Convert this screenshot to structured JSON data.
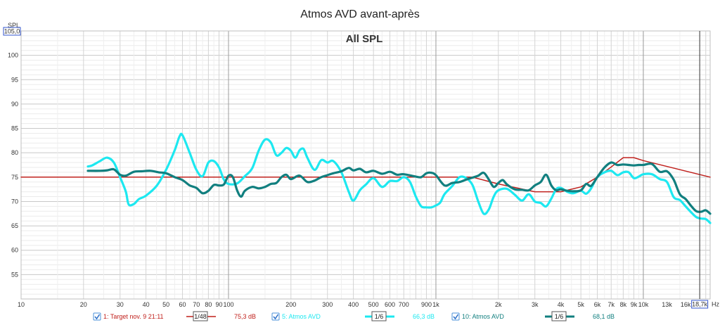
{
  "chart_data": {
    "type": "line",
    "title": "Atmos AVD avant-après",
    "overlay_label": "All SPL",
    "ylabel": "SPL",
    "xunit": "Hz",
    "x_scale": "log",
    "xlim": [
      10,
      21000
    ],
    "ylim": [
      50,
      105
    ],
    "ylim_top_label": "105,0",
    "cursor_label": "18,7k",
    "grid": true,
    "x_tick_labels": [
      {
        "x": 10,
        "label": "10"
      },
      {
        "x": 20,
        "label": "20"
      },
      {
        "x": 30,
        "label": "30"
      },
      {
        "x": 40,
        "label": "40"
      },
      {
        "x": 50,
        "label": "50"
      },
      {
        "x": 60,
        "label": "60"
      },
      {
        "x": 70,
        "label": "70"
      },
      {
        "x": 80,
        "label": "80"
      },
      {
        "x": 90,
        "label": "90"
      },
      {
        "x": 100,
        "label": "100"
      },
      {
        "x": 200,
        "label": "200"
      },
      {
        "x": 300,
        "label": "300"
      },
      {
        "x": 400,
        "label": "400"
      },
      {
        "x": 500,
        "label": "500"
      },
      {
        "x": 600,
        "label": "600"
      },
      {
        "x": 700,
        "label": "700"
      },
      {
        "x": 900,
        "label": "900"
      },
      {
        "x": 1000,
        "label": "1k"
      },
      {
        "x": 2000,
        "label": "2k"
      },
      {
        "x": 3000,
        "label": "3k"
      },
      {
        "x": 4000,
        "label": "4k"
      },
      {
        "x": 5000,
        "label": "5k"
      },
      {
        "x": 6000,
        "label": "6k"
      },
      {
        "x": 7000,
        "label": "7k"
      },
      {
        "x": 8000,
        "label": "8k"
      },
      {
        "x": 9000,
        "label": "9k"
      },
      {
        "x": 10000,
        "label": "10k"
      },
      {
        "x": 13000,
        "label": "13k"
      },
      {
        "x": 16000,
        "label": "16k"
      }
    ],
    "y_tick_labels": [
      {
        "y": 100,
        "label": "100"
      },
      {
        "y": 95,
        "label": "95"
      },
      {
        "y": 90,
        "label": "90"
      },
      {
        "y": 85,
        "label": "85"
      },
      {
        "y": 80,
        "label": "80"
      },
      {
        "y": 75,
        "label": "75"
      },
      {
        "y": 70,
        "label": "70"
      },
      {
        "y": 65,
        "label": "65"
      },
      {
        "y": 60,
        "label": "60"
      },
      {
        "y": 55,
        "label": "55"
      }
    ],
    "series": [
      {
        "name": "1: Target nov. 9 21:11",
        "color": "#c0201c",
        "smoothing": "1/48",
        "level": "75,3 dB",
        "points": [
          [
            10,
            75
          ],
          [
            1200,
            75
          ],
          [
            1500,
            75
          ],
          [
            2000,
            73.6
          ],
          [
            3000,
            72
          ],
          [
            4000,
            72
          ],
          [
            5000,
            73
          ],
          [
            6000,
            75
          ],
          [
            7000,
            77.1
          ],
          [
            8000,
            79
          ],
          [
            9000,
            79
          ],
          [
            10000,
            78.4
          ],
          [
            21000,
            75
          ]
        ]
      },
      {
        "name": "5: Atmos AVD",
        "color": "#1de8f0",
        "smoothing": "1/6",
        "level": "66,3 dB",
        "points": [
          [
            21,
            77.2
          ],
          [
            22,
            77.4
          ],
          [
            24,
            78.3
          ],
          [
            26,
            79
          ],
          [
            28,
            78
          ],
          [
            30,
            75
          ],
          [
            32,
            72
          ],
          [
            33,
            69.4
          ],
          [
            35,
            69.5
          ],
          [
            37,
            70.5
          ],
          [
            40,
            71.2
          ],
          [
            45,
            73.2
          ],
          [
            50,
            76.5
          ],
          [
            55,
            80.5
          ],
          [
            58,
            83.3
          ],
          [
            60,
            83.6
          ],
          [
            65,
            80
          ],
          [
            70,
            76.5
          ],
          [
            75,
            75.2
          ],
          [
            80,
            78
          ],
          [
            85,
            78.3
          ],
          [
            90,
            77
          ],
          [
            95,
            74.5
          ],
          [
            100,
            73.6
          ],
          [
            110,
            73.7
          ],
          [
            120,
            75.2
          ],
          [
            130,
            76.8
          ],
          [
            140,
            80.5
          ],
          [
            150,
            82.7
          ],
          [
            160,
            82.1
          ],
          [
            170,
            79.5
          ],
          [
            180,
            80
          ],
          [
            190,
            81
          ],
          [
            200,
            80.4
          ],
          [
            210,
            79
          ],
          [
            220,
            80.5
          ],
          [
            230,
            80.8
          ],
          [
            240,
            79
          ],
          [
            260,
            76.5
          ],
          [
            280,
            78.5
          ],
          [
            300,
            78
          ],
          [
            320,
            78.3
          ],
          [
            350,
            76
          ],
          [
            380,
            72
          ],
          [
            400,
            70.2
          ],
          [
            430,
            72.3
          ],
          [
            460,
            73.5
          ],
          [
            500,
            74.8
          ],
          [
            550,
            73
          ],
          [
            600,
            74.2
          ],
          [
            650,
            74.2
          ],
          [
            700,
            75
          ],
          [
            750,
            74
          ],
          [
            800,
            71
          ],
          [
            850,
            69
          ],
          [
            900,
            68.8
          ],
          [
            950,
            68.8
          ],
          [
            1000,
            69.2
          ],
          [
            1050,
            69.8
          ],
          [
            1100,
            71.5
          ],
          [
            1200,
            73.2
          ],
          [
            1300,
            75
          ],
          [
            1400,
            74.8
          ],
          [
            1500,
            73.4
          ],
          [
            1600,
            70
          ],
          [
            1700,
            67.5
          ],
          [
            1800,
            68.4
          ],
          [
            1900,
            71
          ],
          [
            2000,
            72.3
          ],
          [
            2200,
            72.6
          ],
          [
            2400,
            71.4
          ],
          [
            2600,
            70.2
          ],
          [
            2800,
            71.5
          ],
          [
            3000,
            70
          ],
          [
            3200,
            69.7
          ],
          [
            3400,
            69
          ],
          [
            3600,
            70.6
          ],
          [
            3800,
            72.5
          ],
          [
            4000,
            72.8
          ],
          [
            4300,
            72
          ],
          [
            4600,
            71.7
          ],
          [
            5000,
            72.2
          ],
          [
            5300,
            71.6
          ],
          [
            5600,
            72.7
          ],
          [
            6000,
            75
          ],
          [
            6500,
            76
          ],
          [
            7000,
            76.3
          ],
          [
            7500,
            75.4
          ],
          [
            8000,
            76
          ],
          [
            8500,
            76
          ],
          [
            9000,
            74.8
          ],
          [
            9500,
            75.1
          ],
          [
            10000,
            75.6
          ],
          [
            11000,
            75.6
          ],
          [
            12000,
            74.6
          ],
          [
            13000,
            74
          ],
          [
            14000,
            70.9
          ],
          [
            15000,
            70.3
          ],
          [
            16000,
            69
          ],
          [
            17000,
            67.8
          ],
          [
            18000,
            66.8
          ],
          [
            19000,
            66.5
          ],
          [
            20000,
            66.4
          ],
          [
            21000,
            65.6
          ]
        ]
      },
      {
        "name": "10: Atmos AVD",
        "color": "#117f7f",
        "smoothing": "1/6",
        "level": "68,1 dB",
        "points": [
          [
            21,
            76.3
          ],
          [
            24,
            76.3
          ],
          [
            26,
            76.4
          ],
          [
            28,
            76.6
          ],
          [
            30,
            75.5
          ],
          [
            32,
            75.3
          ],
          [
            35,
            76.1
          ],
          [
            38,
            76.2
          ],
          [
            42,
            76.3
          ],
          [
            46,
            76
          ],
          [
            50,
            75.8
          ],
          [
            55,
            75
          ],
          [
            60,
            74.4
          ],
          [
            65,
            73.3
          ],
          [
            70,
            72.8
          ],
          [
            75,
            71.7
          ],
          [
            80,
            72.2
          ],
          [
            85,
            73.4
          ],
          [
            90,
            73.3
          ],
          [
            95,
            73.5
          ],
          [
            100,
            75.3
          ],
          [
            105,
            75
          ],
          [
            110,
            72.3
          ],
          [
            115,
            71
          ],
          [
            120,
            72.2
          ],
          [
            130,
            73
          ],
          [
            140,
            72.7
          ],
          [
            150,
            73
          ],
          [
            160,
            73.6
          ],
          [
            170,
            73.8
          ],
          [
            180,
            75
          ],
          [
            190,
            75.5
          ],
          [
            200,
            74.6
          ],
          [
            220,
            75.3
          ],
          [
            240,
            74
          ],
          [
            260,
            74.3
          ],
          [
            280,
            75
          ],
          [
            300,
            75.4
          ],
          [
            320,
            75.8
          ],
          [
            350,
            76.2
          ],
          [
            380,
            76.9
          ],
          [
            400,
            76.4
          ],
          [
            430,
            76.7
          ],
          [
            460,
            76
          ],
          [
            500,
            76.3
          ],
          [
            550,
            75.7
          ],
          [
            600,
            76.1
          ],
          [
            650,
            75.5
          ],
          [
            700,
            75.6
          ],
          [
            800,
            75.1
          ],
          [
            850,
            75
          ],
          [
            900,
            75.8
          ],
          [
            950,
            75.9
          ],
          [
            1000,
            75.4
          ],
          [
            1100,
            73.3
          ],
          [
            1200,
            73.8
          ],
          [
            1300,
            74
          ],
          [
            1400,
            74.5
          ],
          [
            1500,
            74.9
          ],
          [
            1600,
            75.3
          ],
          [
            1700,
            75.9
          ],
          [
            1800,
            74.5
          ],
          [
            1900,
            73
          ],
          [
            2000,
            73.8
          ],
          [
            2100,
            74.4
          ],
          [
            2200,
            73.5
          ],
          [
            2400,
            72.5
          ],
          [
            2600,
            72.4
          ],
          [
            2800,
            72.3
          ],
          [
            3000,
            73.3
          ],
          [
            3200,
            74
          ],
          [
            3400,
            75.5
          ],
          [
            3600,
            73.3
          ],
          [
            3800,
            72.3
          ],
          [
            4000,
            72.5
          ],
          [
            4300,
            72.2
          ],
          [
            4600,
            72.1
          ],
          [
            5000,
            72.3
          ],
          [
            5300,
            73.6
          ],
          [
            5600,
            73.2
          ],
          [
            6000,
            75
          ],
          [
            6500,
            77
          ],
          [
            7000,
            78
          ],
          [
            7500,
            77.5
          ],
          [
            8000,
            77.6
          ],
          [
            8500,
            77.5
          ],
          [
            9000,
            77.4
          ],
          [
            9500,
            77.5
          ],
          [
            10000,
            77.5
          ],
          [
            11000,
            77.7
          ],
          [
            12000,
            76.1
          ],
          [
            13000,
            76.2
          ],
          [
            14000,
            74.5
          ],
          [
            15000,
            71.5
          ],
          [
            16000,
            70.5
          ],
          [
            17000,
            69.1
          ],
          [
            18000,
            68
          ],
          [
            19000,
            67.9
          ],
          [
            20000,
            68.2
          ],
          [
            21000,
            67.5
          ]
        ]
      }
    ]
  }
}
